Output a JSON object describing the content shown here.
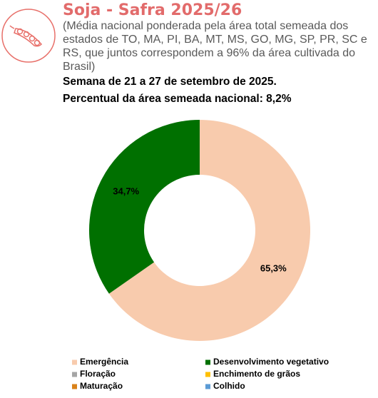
{
  "chart_data": {
    "type": "donut",
    "title": "Soja - Safra 2025/26",
    "subtitle": "(Média nacional ponderada pela área total semeada dos estados de TO, MA, PI, BA, MT, MS, GO, MG, SP, PR, SC e RS, que juntos correspondem a 96% da área cultivada do Brasil)",
    "notes": [
      "Semana de 21 a 27 de setembro de 2025.",
      "Percentual da área semeada nacional: 8,2%"
    ],
    "categories": [
      "Emergência",
      "Desenvolvimento vegetativo",
      "Floração",
      "Enchimento de grãos",
      "Maturação",
      "Colhido"
    ],
    "values": [
      65.3,
      34.7,
      0,
      0,
      0,
      0
    ],
    "value_labels": [
      "65,3%",
      "34,7%",
      null,
      null,
      null,
      null
    ],
    "colors": [
      "#f8cbad",
      "#007000",
      "#a5a5a5",
      "#ffc000",
      "#d9821a",
      "#5b9bd5"
    ]
  }
}
